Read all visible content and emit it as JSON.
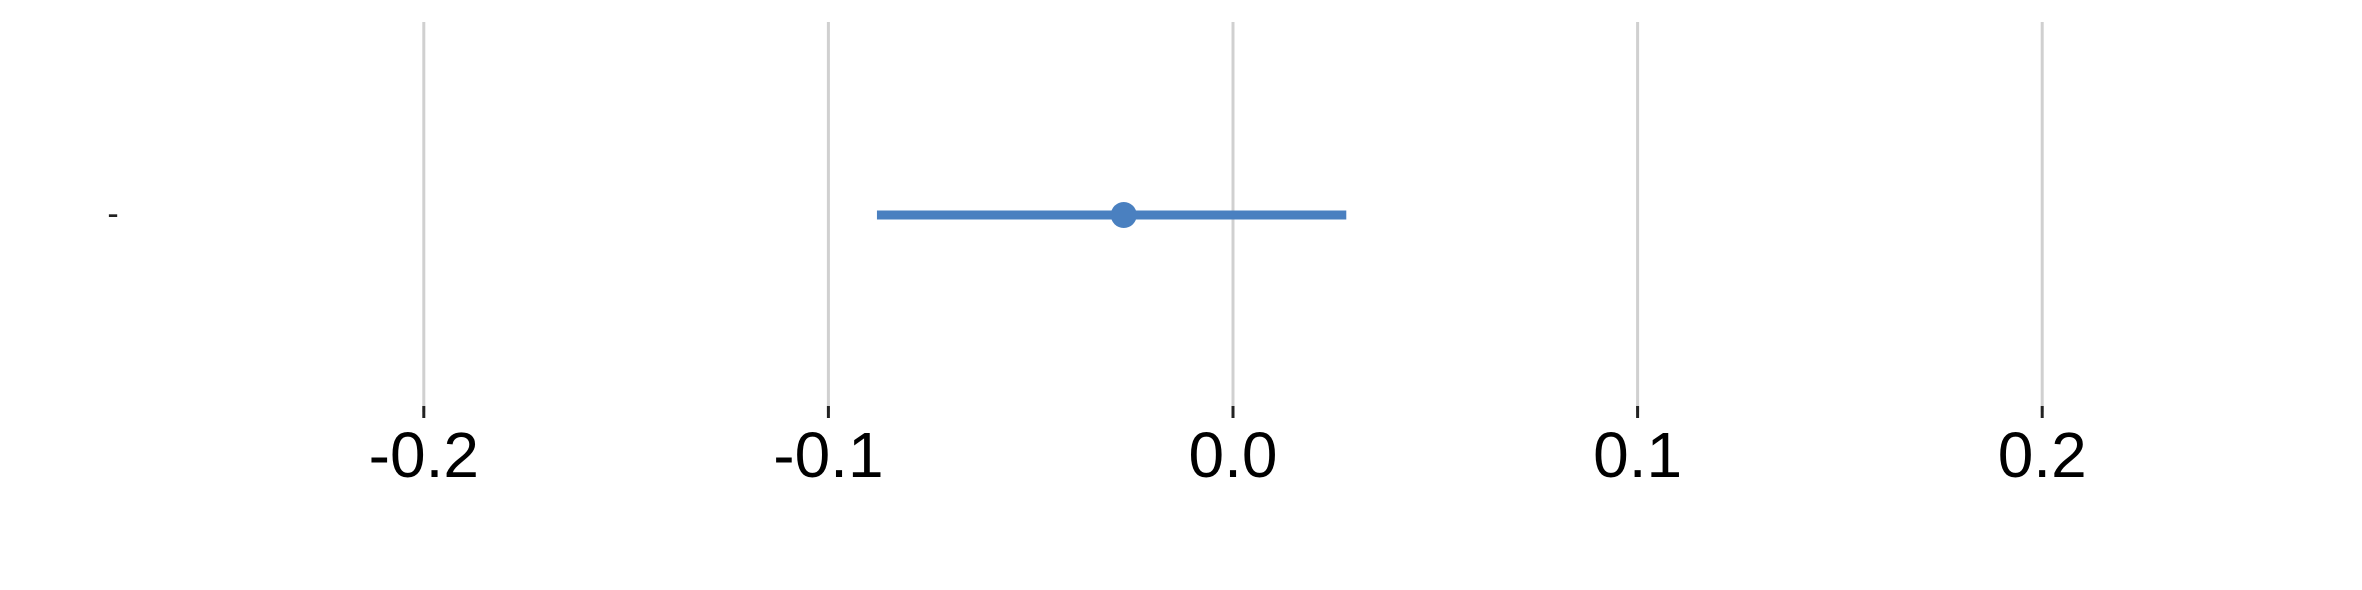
{
  "chart_data": {
    "type": "scatter",
    "title": "",
    "xlabel": "",
    "ylabel": "",
    "xlim": [
      -0.3,
      0.28
    ],
    "xticks": [
      -0.2,
      -0.1,
      0.0,
      0.1,
      0.2
    ],
    "xtick_labels": [
      "-0.2",
      "-0.1",
      "0.0",
      "0.1",
      "0.2"
    ],
    "grid": true,
    "rows": [
      {
        "label": "-",
        "estimate": -0.027,
        "ci_low": -0.088,
        "ci_high": 0.028
      }
    ],
    "colors": {
      "point": "#4a80c0",
      "interval": "#4a80c0"
    }
  }
}
